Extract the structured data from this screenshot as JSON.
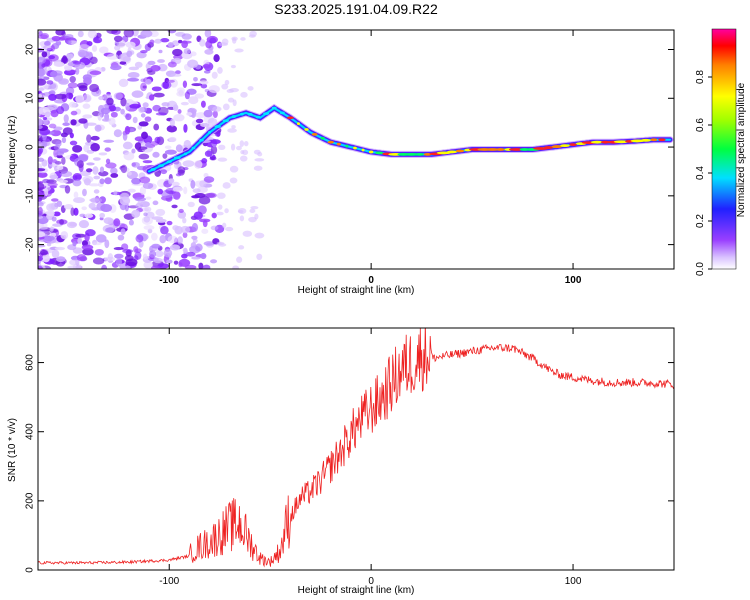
{
  "title": "S233.2025.191.04.09.R22",
  "chart_data": [
    {
      "type": "heatmap",
      "xlabel": "Height of straight line (km)",
      "ylabel": "Frequency (Hz)",
      "xlim": [
        -165,
        150
      ],
      "ylim": [
        -25,
        24
      ],
      "x_ticks": [
        "-100",
        "0",
        "100"
      ],
      "y_ticks": [
        "-20",
        "-10",
        "0",
        "10",
        "20"
      ],
      "colorbar": {
        "label": "Normalized spectral amplitude",
        "range": [
          0,
          1
        ],
        "ticks": [
          "0.0",
          "0.2",
          "0.4",
          "0.6",
          "0.8"
        ],
        "colormap": "rainbow (purple to red)"
      },
      "ridge": {
        "x": [
          -110,
          -100,
          -90,
          -80,
          -70,
          -62,
          -55,
          -48,
          -40,
          -30,
          -20,
          -10,
          0,
          10,
          20,
          30,
          40,
          50,
          60,
          70,
          80,
          90,
          100,
          110,
          120,
          130,
          140,
          148
        ],
        "y": [
          -5,
          -3,
          -1,
          3,
          6,
          7,
          6,
          8,
          6,
          3,
          1,
          0,
          -1,
          -1.5,
          -1.5,
          -1.5,
          -1,
          -0.5,
          -0.5,
          -0.5,
          -0.5,
          0,
          0.5,
          1,
          1,
          1.2,
          1.5,
          1.5
        ]
      }
    },
    {
      "type": "line",
      "xlabel": "Height of straight line (km)",
      "ylabel": "SNR (10 * v/v)",
      "xlim": [
        -165,
        150
      ],
      "ylim": [
        0,
        700
      ],
      "x_ticks": [
        "-100",
        "0",
        "100"
      ],
      "y_ticks": [
        "0",
        "200",
        "400",
        "600"
      ],
      "series": [
        {
          "color": "#ee2222",
          "x": [
            -165,
            -140,
            -120,
            -100,
            -90,
            -85,
            -80,
            -75,
            -70,
            -65,
            -60,
            -55,
            -50,
            -45,
            -40,
            -35,
            -30,
            -25,
            -20,
            -15,
            -10,
            -5,
            0,
            5,
            10,
            15,
            20,
            25,
            30,
            40,
            50,
            60,
            70,
            80,
            85,
            90,
            95,
            100,
            110,
            120,
            130,
            140,
            150
          ],
          "y": [
            20,
            20,
            22,
            28,
            40,
            60,
            70,
            90,
            110,
            120,
            70,
            30,
            20,
            50,
            150,
            200,
            220,
            250,
            290,
            330,
            380,
            420,
            450,
            480,
            520,
            560,
            580,
            600,
            610,
            620,
            630,
            640,
            640,
            610,
            590,
            570,
            560,
            555,
            545,
            540,
            540,
            538,
            535
          ]
        }
      ]
    }
  ]
}
